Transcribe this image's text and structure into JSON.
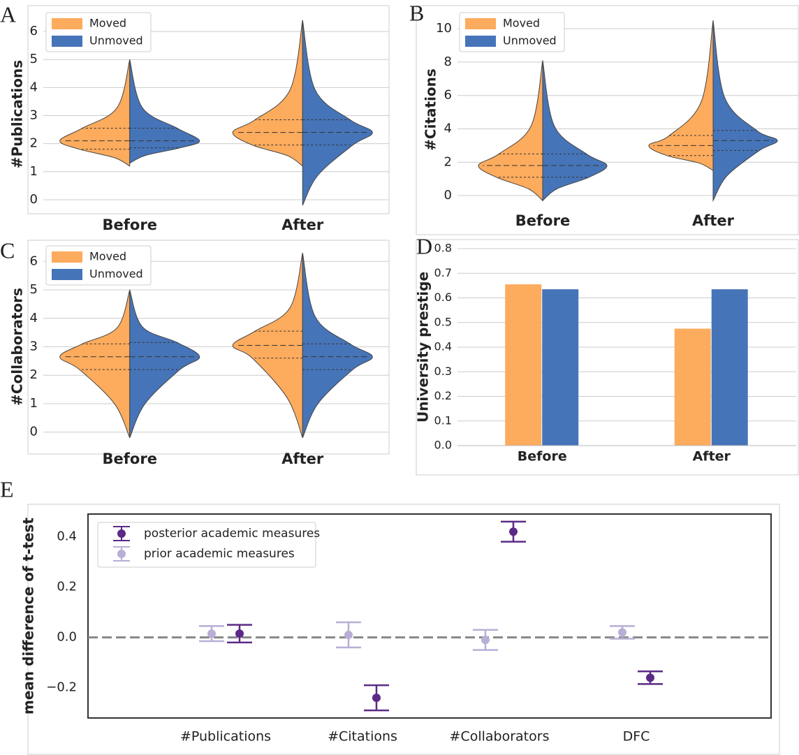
{
  "chart_data": [
    {
      "type": "violin",
      "panel": "A",
      "ylabel": "#Publications",
      "categories": [
        "Before",
        "After"
      ],
      "ylim": [
        -0.4,
        6.5
      ],
      "yticks": [
        0,
        1,
        2,
        3,
        4,
        5,
        6
      ],
      "grid": true,
      "legend": "upper left",
      "series": [
        {
          "name": "Moved",
          "color": "#fdab5d",
          "min": [
            1.2,
            1.2
          ],
          "q1": [
            1.8,
            1.95
          ],
          "median": [
            2.1,
            2.4
          ],
          "q3": [
            2.55,
            2.85
          ],
          "max": [
            5.0,
            6.4
          ]
        },
        {
          "name": "Unmoved",
          "color": "#4674b8",
          "min": [
            1.3,
            -0.2
          ],
          "q1": [
            1.85,
            1.95
          ],
          "median": [
            2.1,
            2.4
          ],
          "q3": [
            2.55,
            2.85
          ],
          "max": [
            5.0,
            6.4
          ]
        }
      ]
    },
    {
      "type": "violin",
      "panel": "B",
      "ylabel": "#Citations",
      "categories": [
        "Before",
        "After"
      ],
      "ylim": [
        -0.5,
        10.8
      ],
      "yticks": [
        0,
        2,
        4,
        6,
        8,
        10
      ],
      "grid": true,
      "legend": "upper left",
      "series": [
        {
          "name": "Moved",
          "color": "#fdab5d",
          "min": [
            -0.3,
            1.5
          ],
          "q1": [
            1.1,
            2.4
          ],
          "median": [
            1.8,
            3.0
          ],
          "q3": [
            2.5,
            3.6
          ],
          "max": [
            8.1,
            10.5
          ]
        },
        {
          "name": "Unmoved",
          "color": "#4674b8",
          "min": [
            -0.3,
            -0.3
          ],
          "q1": [
            1.1,
            2.7
          ],
          "median": [
            1.8,
            3.3
          ],
          "q3": [
            2.5,
            3.9
          ],
          "max": [
            8.1,
            10.5
          ]
        }
      ]
    },
    {
      "type": "violin",
      "panel": "C",
      "ylabel": "#Collaborators",
      "categories": [
        "Before",
        "After"
      ],
      "ylim": [
        -0.4,
        6.4
      ],
      "yticks": [
        0,
        1,
        2,
        3,
        4,
        5,
        6
      ],
      "grid": true,
      "legend": "upper left",
      "series": [
        {
          "name": "Moved",
          "color": "#fdab5d",
          "min": [
            -0.2,
            -0.2
          ],
          "q1": [
            2.2,
            2.6
          ],
          "median": [
            2.65,
            3.05
          ],
          "q3": [
            3.1,
            3.55
          ],
          "max": [
            5.0,
            6.3
          ]
        },
        {
          "name": "Unmoved",
          "color": "#4674b8",
          "min": [
            -0.2,
            -0.2
          ],
          "q1": [
            2.2,
            2.2
          ],
          "median": [
            2.65,
            2.65
          ],
          "q3": [
            3.15,
            3.1
          ],
          "max": [
            5.0,
            6.3
          ]
        }
      ]
    },
    {
      "type": "bar",
      "panel": "D",
      "ylabel": "University prestige",
      "categories": [
        "Before",
        "After"
      ],
      "ylim": [
        0,
        0.8
      ],
      "yticks": [
        {
          "value": 0,
          "label": "0.0"
        },
        0.1,
        0.2,
        0.3,
        0.4,
        0.5,
        0.6,
        0.7,
        0.8
      ],
      "grid": true,
      "series": [
        {
          "name": "Moved",
          "color": "#fdab5d",
          "values": [
            0.655,
            0.475
          ]
        },
        {
          "name": "Unmoved",
          "color": "#4674b8",
          "values": [
            0.635,
            0.635
          ]
        }
      ]
    },
    {
      "type": "errorbar",
      "panel": "E",
      "ylabel": "mean difference of t-test",
      "categories": [
        "#Publications",
        "#Citations",
        "#Collaborators",
        "DFC"
      ],
      "ylim": [
        -0.32,
        0.49
      ],
      "yticks": [
        {
          "value": -0.2,
          "label": "−0.2"
        },
        {
          "value": 0,
          "label": "0.0"
        },
        0.2,
        0.4
      ],
      "legend": "upper left",
      "series": [
        {
          "name": "posterior academic measures",
          "color": "#5b2a86",
          "values": [
            0.015,
            -0.24,
            0.42,
            -0.16
          ],
          "errors": [
            0.035,
            0.05,
            0.04,
            0.025
          ]
        },
        {
          "name": "prior academic measures",
          "color": "#b8aed6",
          "values": [
            0.015,
            0.01,
            -0.01,
            0.02
          ],
          "errors": [
            0.03,
            0.05,
            0.04,
            0.025
          ]
        }
      ]
    }
  ]
}
